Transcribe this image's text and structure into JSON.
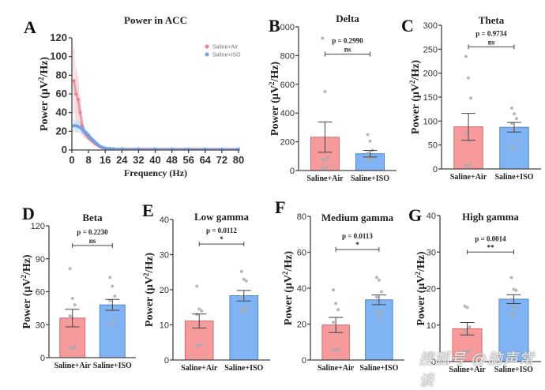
{
  "colors": {
    "air": "#f4888a",
    "air_fill": "#f79a9b",
    "iso": "#6fa8f0",
    "iso_fill": "#80b3f3",
    "air_line": "#e8808a",
    "iso_line": "#6aa3e8",
    "dots": "#aaaaaa",
    "axis": "#444444"
  },
  "watermark": "搜狐号 @脑声常谈",
  "chart_data": [
    {
      "id": "A",
      "type": "line",
      "panel_letter": "A",
      "title": "Power in ACC",
      "xlabel": "Frequency (Hz)",
      "ylabel": "Power (μV²/Hz)",
      "xlim": [
        0,
        80
      ],
      "ylim": [
        0,
        120
      ],
      "xticks": [
        0,
        8,
        16,
        24,
        32,
        40,
        48,
        56,
        64,
        72,
        80
      ],
      "yticks": [
        0,
        20,
        40,
        60,
        80,
        100,
        120
      ],
      "legend": [
        "Saline+Air",
        "Saline+ISO"
      ],
      "legend_position": "top-right",
      "series": [
        {
          "name": "Saline+Air",
          "x": [
            1,
            2,
            3,
            4,
            5,
            6,
            7,
            8,
            9,
            10,
            11,
            12,
            13,
            14,
            15,
            16,
            18,
            20,
            24,
            32,
            40,
            48,
            56,
            64,
            72,
            80
          ],
          "y": [
            74,
            60,
            54,
            40,
            26,
            19,
            16,
            13,
            11,
            9,
            7,
            5.5,
            4,
            3,
            2.2,
            1.8,
            1.5,
            1.3,
            1.2,
            1.1,
            1.0,
            1.0,
            0.9,
            0.9,
            0.8,
            0.8
          ],
          "err": [
            36,
            27,
            25,
            17,
            10,
            6,
            4,
            3,
            2.5,
            2,
            1.5,
            1.2,
            1,
            0.8,
            0.6,
            0.5,
            0.4,
            0.4,
            0.3,
            0.3,
            0.3,
            0.3,
            0.3,
            0.3,
            0.3,
            0.3
          ]
        },
        {
          "name": "Saline+ISO",
          "x": [
            1,
            2,
            3,
            4,
            5,
            6,
            7,
            8,
            9,
            10,
            11,
            12,
            13,
            14,
            15,
            16,
            18,
            20,
            24,
            32,
            40,
            48,
            56,
            64,
            72,
            80
          ],
          "y": [
            26,
            26,
            25,
            24,
            22,
            20,
            18,
            16,
            13,
            11,
            9,
            7,
            5,
            3.5,
            2.5,
            2,
            1.6,
            1.4,
            1.2,
            1.1,
            1.0,
            1.0,
            0.9,
            0.9,
            0.8,
            0.8
          ],
          "err": [
            7,
            7,
            6.5,
            6,
            5,
            4.5,
            4,
            3.5,
            3,
            2.5,
            2,
            1.5,
            1.2,
            1,
            0.7,
            0.5,
            0.4,
            0.4,
            0.3,
            0.3,
            0.3,
            0.3,
            0.3,
            0.3,
            0.3,
            0.3
          ]
        }
      ]
    },
    {
      "id": "B",
      "type": "bar",
      "panel_letter": "B",
      "title": "Delta",
      "ylabel": "Power (μV²/Hz)",
      "ylim": [
        0,
        1000
      ],
      "yticks": [
        0,
        200,
        400,
        600,
        800,
        1000
      ],
      "categories": [
        "Saline+Air",
        "Saline+ISO"
      ],
      "values": [
        232,
        117
      ],
      "sem": [
        105,
        23
      ],
      "points": [
        [
          920,
          550,
          90,
          80,
          70,
          30,
          20,
          10
        ],
        [
          250,
          205,
          140,
          120,
          100,
          90,
          80,
          70
        ]
      ],
      "p_value": "p = 0.2990",
      "significance": "ns"
    },
    {
      "id": "C",
      "type": "bar",
      "panel_letter": "C",
      "title": "Theta",
      "ylabel": "Power (μV²/Hz)",
      "ylim": [
        0,
        300
      ],
      "yticks": [
        0,
        50,
        100,
        150,
        200,
        250,
        300
      ],
      "categories": [
        "Saline+Air",
        "Saline+ISO"
      ],
      "values": [
        88,
        87
      ],
      "sem": [
        28,
        10
      ],
      "points": [
        [
          235,
          190,
          148,
          75,
          58,
          10,
          8,
          6
        ],
        [
          127,
          115,
          105,
          95,
          85,
          60,
          45,
          42
        ]
      ],
      "p_value": "p = 0.9734",
      "significance": "ns"
    },
    {
      "id": "D",
      "type": "bar",
      "panel_letter": "D",
      "title": "Beta",
      "ylabel": "Power (μV²/Hz)",
      "ylim": [
        0,
        120
      ],
      "yticks": [
        0,
        30,
        60,
        90,
        120
      ],
      "categories": [
        "Saline+Air",
        "Saline+ISO"
      ],
      "values": [
        36,
        48
      ],
      "sem": [
        8,
        5
      ],
      "points": [
        [
          81,
          54,
          48,
          38,
          36,
          10,
          9,
          8
        ],
        [
          73,
          65,
          56,
          52,
          44,
          35,
          31,
          30
        ]
      ],
      "p_value": "p = 0.2230",
      "significance": "ns"
    },
    {
      "id": "E",
      "type": "bar",
      "panel_letter": "E",
      "title": "Low gamma",
      "ylabel": "Power (μV²/Hz)",
      "ylim": [
        0,
        40
      ],
      "yticks": [
        0,
        10,
        20,
        30,
        40
      ],
      "categories": [
        "Saline+Air",
        "Saline+ISO"
      ],
      "values": [
        11.1,
        18.3
      ],
      "sem": [
        2.0,
        1.5
      ],
      "points": [
        [
          21,
          14.5,
          14,
          13,
          10,
          4.5,
          4,
          4.2
        ],
        [
          25.2,
          23,
          22.5,
          18,
          15,
          14.5,
          14,
          13.5
        ]
      ],
      "p_value": "p = 0.0112",
      "significance": "*"
    },
    {
      "id": "F",
      "type": "bar",
      "panel_letter": "F",
      "title": "Medium gamma",
      "ylabel": "Power (μV²/Hz)",
      "ylim": [
        0,
        80
      ],
      "yticks": [
        0,
        20,
        40,
        60,
        80
      ],
      "categories": [
        "Saline+Air",
        "Saline+ISO"
      ],
      "values": [
        19.5,
        33.5
      ],
      "sem": [
        4.2,
        2.7
      ],
      "points": [
        [
          39,
          31.5,
          28,
          21,
          17.5,
          6,
          5.8,
          5.5
        ],
        [
          46,
          44.5,
          38,
          35,
          27,
          26,
          26.5,
          23
        ]
      ],
      "p_value": "p = 0.0113",
      "significance": "*"
    },
    {
      "id": "G",
      "type": "bar",
      "panel_letter": "G",
      "title": "High gamma",
      "ylabel": "Power (μV²/Hz)",
      "ylim": [
        0,
        40
      ],
      "yticks": [
        0,
        10,
        20,
        30,
        40
      ],
      "categories": [
        "Saline+Air",
        "Saline+ISO"
      ],
      "values": [
        9.0,
        17.1
      ],
      "sem": [
        1.7,
        1.2
      ],
      "points": [
        [
          15.2,
          14.8,
          9.5,
          8.5,
          7.5,
          3,
          2.8,
          2.6
        ],
        [
          23,
          19.8,
          19.5,
          17,
          15,
          14,
          13,
          12.5
        ]
      ],
      "p_value": "p = 0.0014",
      "significance": "**"
    }
  ]
}
